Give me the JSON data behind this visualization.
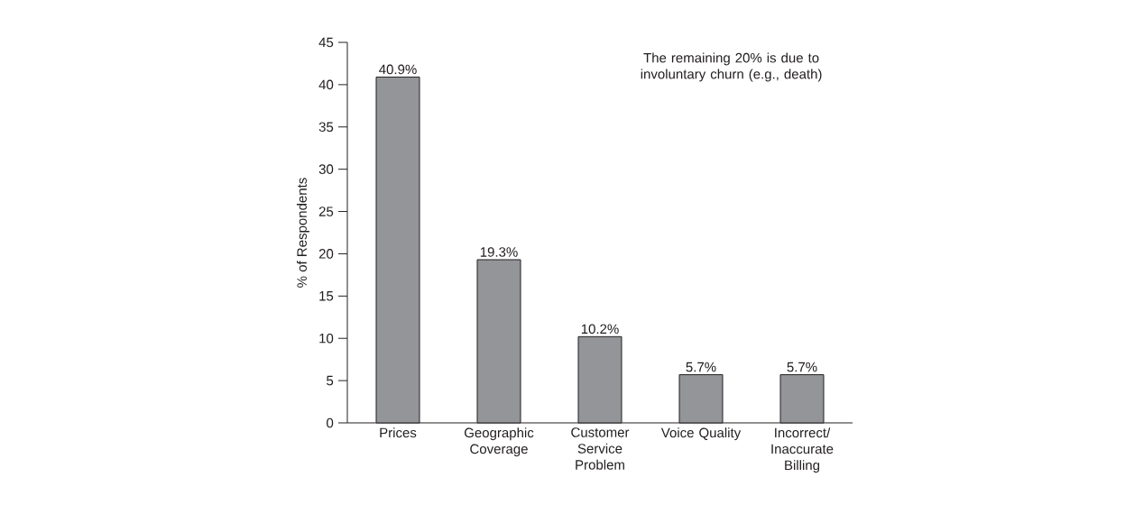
{
  "chart_data": {
    "type": "bar",
    "categories": [
      "Prices",
      "Geographic Coverage",
      "Customer Service Problem",
      "Voice Quality",
      "Incorrect/ Inaccurate Billing"
    ],
    "values": [
      40.9,
      19.3,
      10.2,
      5.7,
      5.7
    ],
    "value_labels": [
      "40.9%",
      "19.3%",
      "10.2%",
      "5.7%",
      "5.7%"
    ],
    "color": "#939598",
    "ylabel": "% of Respondents",
    "ylim": [
      0,
      45
    ],
    "yticks": [
      0,
      5,
      10,
      15,
      20,
      25,
      30,
      35,
      40,
      45
    ],
    "annotations": [
      "The remaining 20% is due to involuntary churn (e.g., death)"
    ]
  }
}
